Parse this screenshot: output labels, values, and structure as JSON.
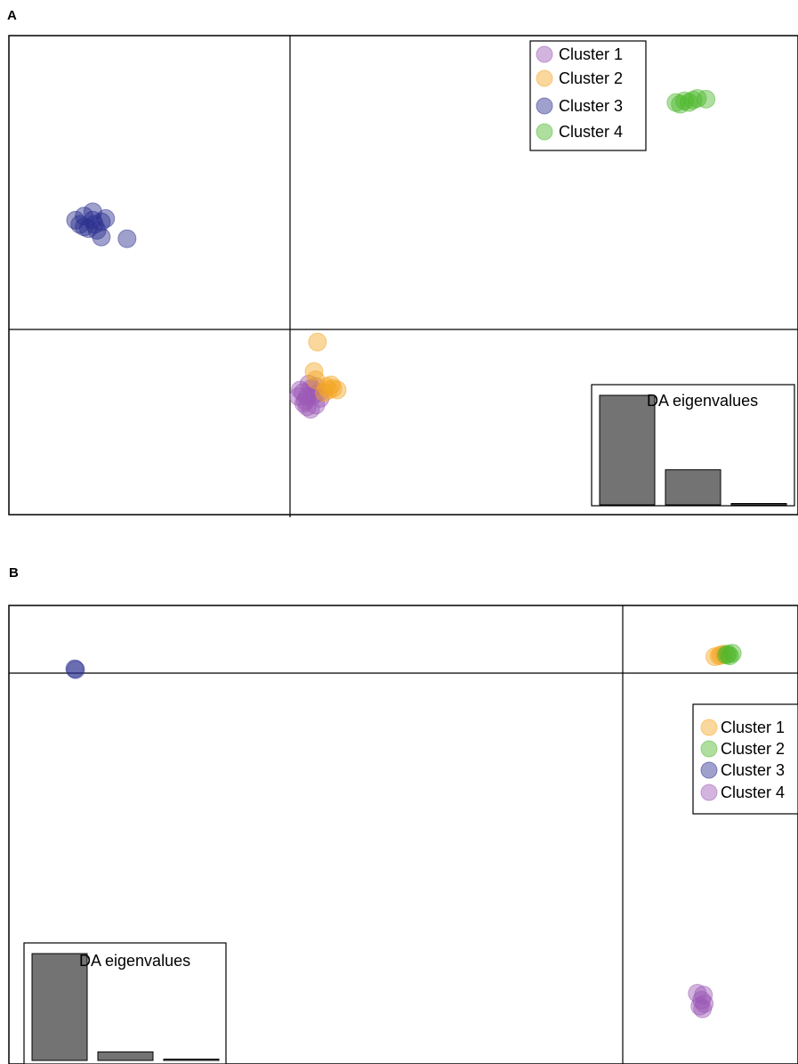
{
  "panels": [
    {
      "label": "A",
      "legend": [
        {
          "name": "Cluster 1",
          "color": "#9b59b6"
        },
        {
          "name": "Cluster 2",
          "color": "#f5a623"
        },
        {
          "name": "Cluster 3",
          "color": "#2b2f8f"
        },
        {
          "name": "Cluster 4",
          "color": "#4cb82b"
        }
      ],
      "eigen_label": "DA eigenvalues",
      "eigenvalues": [
        1.0,
        0.32,
        0.01
      ]
    },
    {
      "label": "B",
      "legend": [
        {
          "name": "Cluster 1",
          "color": "#f5a623"
        },
        {
          "name": "Cluster 2",
          "color": "#4cb82b"
        },
        {
          "name": "Cluster 3",
          "color": "#2b2f8f"
        },
        {
          "name": "Cluster 4",
          "color": "#9b59b6"
        }
      ],
      "eigen_label": "DA eigenvalues",
      "eigenvalues": [
        1.0,
        0.08,
        0.01
      ]
    }
  ],
  "chart_data": [
    {
      "type": "scatter",
      "panel": "A",
      "xlim": [
        -3.2,
        6.0
      ],
      "ylim": [
        -2.2,
        3.5
      ],
      "series": [
        {
          "name": "Cluster 1",
          "color": "#9b59b6",
          "points": [
            [
              0.15,
              -0.75
            ],
            [
              0.2,
              -0.8
            ],
            [
              0.25,
              -0.7
            ],
            [
              0.18,
              -0.85
            ],
            [
              0.3,
              -0.9
            ],
            [
              0.22,
              -0.65
            ],
            [
              0.28,
              -0.78
            ],
            [
              0.12,
              -0.72
            ],
            [
              0.35,
              -0.82
            ],
            [
              0.24,
              -0.95
            ],
            [
              0.16,
              -0.88
            ],
            [
              0.3,
              -0.68
            ],
            [
              0.2,
              -0.92
            ],
            [
              0.34,
              -0.75
            ],
            [
              0.1,
              -0.8
            ]
          ]
        },
        {
          "name": "Cluster 2",
          "color": "#f5a623",
          "points": [
            [
              0.32,
              -0.15
            ],
            [
              0.28,
              -0.5
            ],
            [
              0.45,
              -0.72
            ],
            [
              0.5,
              -0.7
            ],
            [
              0.42,
              -0.68
            ],
            [
              0.55,
              -0.72
            ],
            [
              0.4,
              -0.75
            ],
            [
              0.48,
              -0.66
            ],
            [
              0.3,
              -0.6
            ]
          ]
        },
        {
          "name": "Cluster 3",
          "color": "#2b2f8f",
          "points": [
            [
              -2.5,
              1.3
            ],
            [
              -2.4,
              1.35
            ],
            [
              -2.3,
              1.3
            ],
            [
              -2.2,
              1.28
            ],
            [
              -2.35,
              1.2
            ],
            [
              -2.45,
              1.25
            ],
            [
              -2.25,
              1.18
            ],
            [
              -2.2,
              1.1
            ],
            [
              -1.9,
              1.08
            ],
            [
              -2.3,
              1.4
            ],
            [
              -2.15,
              1.32
            ],
            [
              -2.4,
              1.22
            ],
            [
              -2.28,
              1.25
            ]
          ]
        },
        {
          "name": "Cluster 4",
          "color": "#4cb82b",
          "points": [
            [
              4.5,
              2.7
            ],
            [
              4.6,
              2.72
            ],
            [
              4.65,
              2.7
            ],
            [
              4.7,
              2.73
            ],
            [
              4.75,
              2.75
            ],
            [
              4.85,
              2.74
            ],
            [
              4.55,
              2.68
            ],
            [
              4.0,
              2.28
            ]
          ]
        }
      ]
    },
    {
      "type": "scatter",
      "panel": "B",
      "xlim": [
        -7.0,
        2.0
      ],
      "ylim": [
        -4.5,
        0.8
      ],
      "series": [
        {
          "name": "Cluster 1",
          "color": "#f5a623",
          "points": [
            [
              1.1,
              0.2
            ],
            [
              1.15,
              0.22
            ],
            [
              1.05,
              0.19
            ],
            [
              1.12,
              0.21
            ]
          ]
        },
        {
          "name": "Cluster 2",
          "color": "#4cb82b",
          "points": [
            [
              1.2,
              0.22
            ],
            [
              1.22,
              0.2
            ],
            [
              1.25,
              0.23
            ],
            [
              1.18,
              0.21
            ]
          ]
        },
        {
          "name": "Cluster 3",
          "color": "#2b2f8f",
          "points": [
            [
              -6.25,
              0.05
            ],
            [
              -6.24,
              0.04
            ]
          ]
        },
        {
          "name": "Cluster 4",
          "color": "#9b59b6",
          "points": [
            [
              0.85,
              -3.7
            ],
            [
              0.92,
              -3.72
            ],
            [
              0.9,
              -3.78
            ],
            [
              0.93,
              -3.82
            ],
            [
              0.91,
              -3.88
            ],
            [
              0.88,
              -3.85
            ]
          ]
        }
      ]
    }
  ]
}
